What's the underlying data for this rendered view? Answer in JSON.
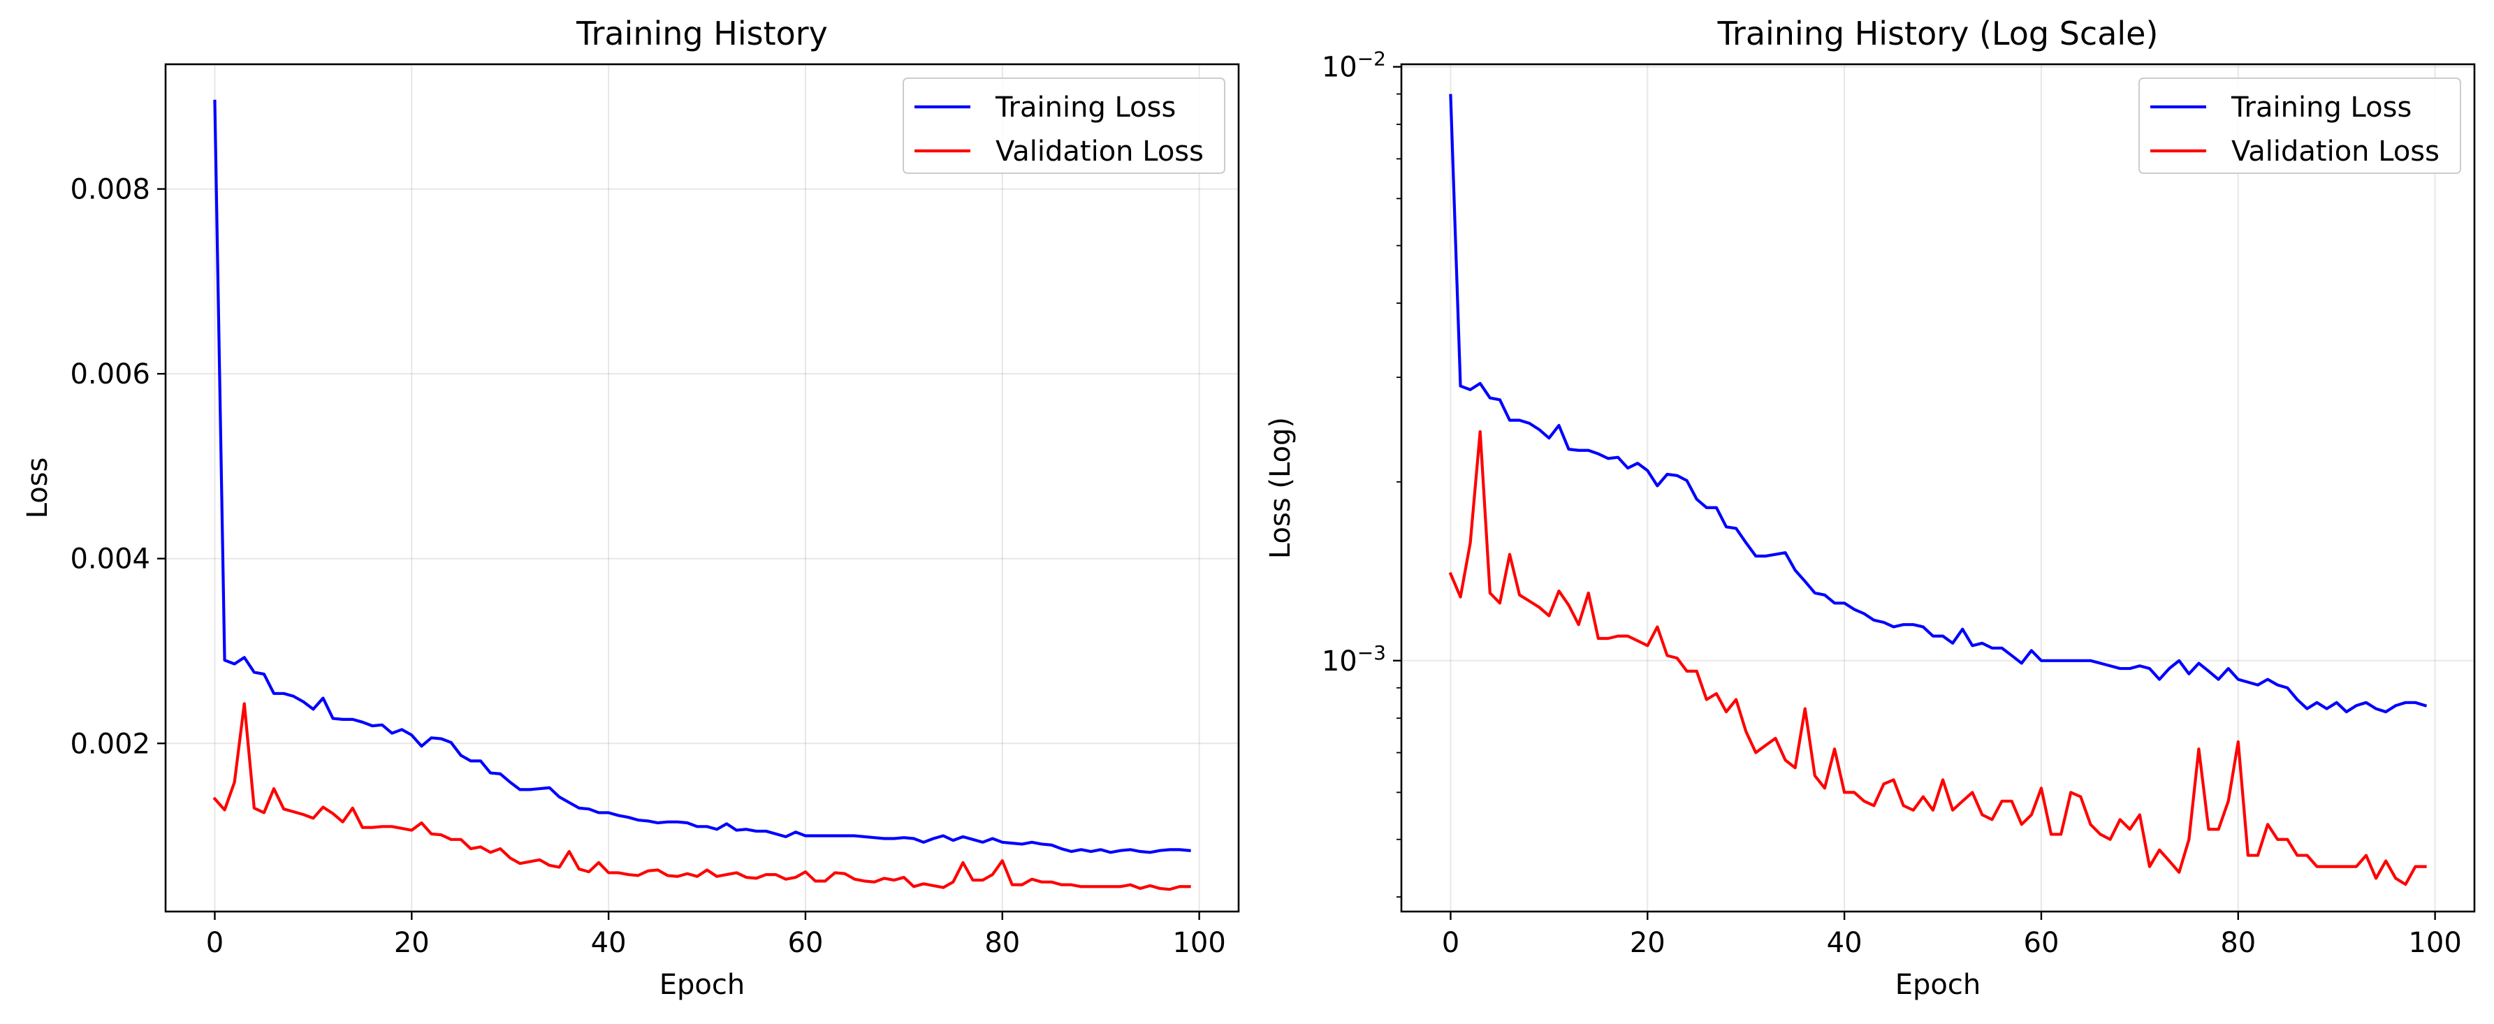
{
  "chart_data": [
    {
      "type": "line",
      "title": "Training History",
      "xlabel": "Epoch",
      "ylabel": "Loss",
      "yscale": "linear",
      "xlim": [
        -5,
        104
      ],
      "ylim": [
        0.00018,
        0.00935
      ],
      "xticks": [
        0,
        20,
        40,
        60,
        80,
        100
      ],
      "xtick_labels": [
        "0",
        "20",
        "40",
        "60",
        "80",
        "100"
      ],
      "yticks": [
        0.002,
        0.004,
        0.006,
        0.008
      ],
      "ytick_labels": [
        "0.002",
        "0.004",
        "0.006",
        "0.008"
      ],
      "grid": true,
      "legend": "top-right",
      "series": [
        {
          "name": "Training Loss",
          "color": "#0000ff",
          "x": [
            0,
            1,
            2,
            3,
            4,
            5,
            6,
            7,
            8,
            9,
            10,
            11,
            12,
            13,
            14,
            15,
            16,
            17,
            18,
            19,
            20,
            21,
            22,
            23,
            24,
            25,
            26,
            27,
            28,
            29,
            30,
            31,
            32,
            33,
            34,
            35,
            36,
            37,
            38,
            39,
            40,
            41,
            42,
            43,
            44,
            45,
            46,
            47,
            48,
            49,
            50,
            51,
            52,
            53,
            54,
            55,
            56,
            57,
            58,
            59,
            60,
            61,
            62,
            63,
            64,
            65,
            66,
            67,
            68,
            69,
            70,
            71,
            72,
            73,
            74,
            75,
            76,
            77,
            78,
            79,
            80,
            81,
            82,
            83,
            84,
            85,
            86,
            87,
            88,
            89,
            90,
            91,
            92,
            93,
            94,
            95,
            96,
            97,
            98,
            99
          ],
          "values": [
            0.00895,
            0.0029,
            0.00286,
            0.00293,
            0.00277,
            0.00275,
            0.00254,
            0.00254,
            0.00251,
            0.00245,
            0.00237,
            0.00249,
            0.00227,
            0.00226,
            0.00226,
            0.00223,
            0.00219,
            0.0022,
            0.00211,
            0.00215,
            0.00209,
            0.00197,
            0.00206,
            0.00205,
            0.00201,
            0.00187,
            0.00181,
            0.00181,
            0.00168,
            0.00167,
            0.00158,
            0.0015,
            0.0015,
            0.00151,
            0.00152,
            0.00142,
            0.00136,
            0.0013,
            0.00129,
            0.00125,
            0.00125,
            0.00122,
            0.0012,
            0.00117,
            0.00116,
            0.00114,
            0.00115,
            0.00115,
            0.00114,
            0.0011,
            0.0011,
            0.00107,
            0.00113,
            0.00106,
            0.00107,
            0.00105,
            0.00105,
            0.00102,
            0.00099,
            0.00104,
            0.001,
            0.001,
            0.001,
            0.001,
            0.001,
            0.001,
            0.00099,
            0.00098,
            0.00097,
            0.00097,
            0.00098,
            0.00097,
            0.00093,
            0.00097,
            0.001,
            0.00095,
            0.00099,
            0.00096,
            0.00093,
            0.00097,
            0.00093,
            0.00092,
            0.00091,
            0.00093,
            0.00091,
            0.0009,
            0.00086,
            0.00083,
            0.00085,
            0.00083,
            0.00085,
            0.00082,
            0.00084,
            0.00085,
            0.00083,
            0.00082,
            0.00084,
            0.00085,
            0.00085,
            0.00084
          ]
        },
        {
          "name": "Validation Loss",
          "color": "#ff0000",
          "x": [
            0,
            1,
            2,
            3,
            4,
            5,
            6,
            7,
            8,
            9,
            10,
            11,
            12,
            13,
            14,
            15,
            16,
            17,
            18,
            19,
            20,
            21,
            22,
            23,
            24,
            25,
            26,
            27,
            28,
            29,
            30,
            31,
            32,
            33,
            34,
            35,
            36,
            37,
            38,
            39,
            40,
            41,
            42,
            43,
            44,
            45,
            46,
            47,
            48,
            49,
            50,
            51,
            52,
            53,
            54,
            55,
            56,
            57,
            58,
            59,
            60,
            61,
            62,
            63,
            64,
            65,
            66,
            67,
            68,
            69,
            70,
            71,
            72,
            73,
            74,
            75,
            76,
            77,
            78,
            79,
            80,
            81,
            82,
            83,
            84,
            85,
            86,
            87,
            88,
            89,
            90,
            91,
            92,
            93,
            94,
            95,
            96,
            97,
            98,
            99
          ],
          "values": [
            0.0014,
            0.00128,
            0.00158,
            0.00243,
            0.0013,
            0.00125,
            0.00151,
            0.00129,
            0.00126,
            0.00123,
            0.00119,
            0.00131,
            0.00124,
            0.00115,
            0.0013,
            0.00109,
            0.00109,
            0.0011,
            0.0011,
            0.00108,
            0.00106,
            0.00114,
            0.00102,
            0.00101,
            0.00096,
            0.00096,
            0.00086,
            0.00088,
            0.00082,
            0.00086,
            0.00076,
            0.0007,
            0.00072,
            0.00074,
            0.00068,
            0.00066,
            0.00083,
            0.00064,
            0.00061,
            0.00071,
            0.0006,
            0.0006,
            0.00058,
            0.00057,
            0.00062,
            0.00063,
            0.00057,
            0.00056,
            0.00059,
            0.00056,
            0.00063,
            0.00056,
            0.00058,
            0.0006,
            0.00055,
            0.00054,
            0.00058,
            0.00058,
            0.00053,
            0.00055,
            0.00061,
            0.00051,
            0.00051,
            0.0006,
            0.00059,
            0.00053,
            0.00051,
            0.0005,
            0.00054,
            0.00052,
            0.00055,
            0.00045,
            0.00048,
            0.00046,
            0.00044,
            0.0005,
            0.00071,
            0.00052,
            0.00052,
            0.00058,
            0.00073,
            0.00047,
            0.00047,
            0.00053,
            0.0005,
            0.0005,
            0.00047,
            0.00047,
            0.00045,
            0.00045,
            0.00045,
            0.00045,
            0.00045,
            0.00047,
            0.00043,
            0.00046,
            0.00043,
            0.00042,
            0.00045,
            0.00045
          ]
        }
      ]
    },
    {
      "type": "line",
      "title": "Training History (Log Scale)",
      "xlabel": "Epoch",
      "ylabel": "Loss (Log)",
      "yscale": "log",
      "xlim": [
        -5,
        104
      ],
      "ylim": [
        0.000378,
        0.0101
      ],
      "xticks": [
        0,
        20,
        40,
        60,
        80,
        100
      ],
      "xtick_labels": [
        "0",
        "20",
        "40",
        "60",
        "80",
        "100"
      ],
      "yticks": [
        0.001,
        0.01
      ],
      "ytick_base": "10",
      "ytick_exponents": [
        "−3",
        "−2"
      ],
      "grid": true,
      "legend": "top-right",
      "series": [
        {
          "name": "Training Loss",
          "color": "#0000ff",
          "x": [
            0,
            1,
            2,
            3,
            4,
            5,
            6,
            7,
            8,
            9,
            10,
            11,
            12,
            13,
            14,
            15,
            16,
            17,
            18,
            19,
            20,
            21,
            22,
            23,
            24,
            25,
            26,
            27,
            28,
            29,
            30,
            31,
            32,
            33,
            34,
            35,
            36,
            37,
            38,
            39,
            40,
            41,
            42,
            43,
            44,
            45,
            46,
            47,
            48,
            49,
            50,
            51,
            52,
            53,
            54,
            55,
            56,
            57,
            58,
            59,
            60,
            61,
            62,
            63,
            64,
            65,
            66,
            67,
            68,
            69,
            70,
            71,
            72,
            73,
            74,
            75,
            76,
            77,
            78,
            79,
            80,
            81,
            82,
            83,
            84,
            85,
            86,
            87,
            88,
            89,
            90,
            91,
            92,
            93,
            94,
            95,
            96,
            97,
            98,
            99
          ],
          "values": [
            0.00895,
            0.0029,
            0.00286,
            0.00293,
            0.00277,
            0.00275,
            0.00254,
            0.00254,
            0.00251,
            0.00245,
            0.00237,
            0.00249,
            0.00227,
            0.00226,
            0.00226,
            0.00223,
            0.00219,
            0.0022,
            0.00211,
            0.00215,
            0.00209,
            0.00197,
            0.00206,
            0.00205,
            0.00201,
            0.00187,
            0.00181,
            0.00181,
            0.00168,
            0.00167,
            0.00158,
            0.0015,
            0.0015,
            0.00151,
            0.00152,
            0.00142,
            0.00136,
            0.0013,
            0.00129,
            0.00125,
            0.00125,
            0.00122,
            0.0012,
            0.00117,
            0.00116,
            0.00114,
            0.00115,
            0.00115,
            0.00114,
            0.0011,
            0.0011,
            0.00107,
            0.00113,
            0.00106,
            0.00107,
            0.00105,
            0.00105,
            0.00102,
            0.00099,
            0.00104,
            0.001,
            0.001,
            0.001,
            0.001,
            0.001,
            0.001,
            0.00099,
            0.00098,
            0.00097,
            0.00097,
            0.00098,
            0.00097,
            0.00093,
            0.00097,
            0.001,
            0.00095,
            0.00099,
            0.00096,
            0.00093,
            0.00097,
            0.00093,
            0.00092,
            0.00091,
            0.00093,
            0.00091,
            0.0009,
            0.00086,
            0.00083,
            0.00085,
            0.00083,
            0.00085,
            0.00082,
            0.00084,
            0.00085,
            0.00083,
            0.00082,
            0.00084,
            0.00085,
            0.00085,
            0.00084
          ]
        },
        {
          "name": "Validation Loss",
          "color": "#ff0000",
          "x": [
            0,
            1,
            2,
            3,
            4,
            5,
            6,
            7,
            8,
            9,
            10,
            11,
            12,
            13,
            14,
            15,
            16,
            17,
            18,
            19,
            20,
            21,
            22,
            23,
            24,
            25,
            26,
            27,
            28,
            29,
            30,
            31,
            32,
            33,
            34,
            35,
            36,
            37,
            38,
            39,
            40,
            41,
            42,
            43,
            44,
            45,
            46,
            47,
            48,
            49,
            50,
            51,
            52,
            53,
            54,
            55,
            56,
            57,
            58,
            59,
            60,
            61,
            62,
            63,
            64,
            65,
            66,
            67,
            68,
            69,
            70,
            71,
            72,
            73,
            74,
            75,
            76,
            77,
            78,
            79,
            80,
            81,
            82,
            83,
            84,
            85,
            86,
            87,
            88,
            89,
            90,
            91,
            92,
            93,
            94,
            95,
            96,
            97,
            98,
            99
          ],
          "values": [
            0.0014,
            0.00128,
            0.00158,
            0.00243,
            0.0013,
            0.00125,
            0.00151,
            0.00129,
            0.00126,
            0.00123,
            0.00119,
            0.00131,
            0.00124,
            0.00115,
            0.0013,
            0.00109,
            0.00109,
            0.0011,
            0.0011,
            0.00108,
            0.00106,
            0.00114,
            0.00102,
            0.00101,
            0.00096,
            0.00096,
            0.00086,
            0.00088,
            0.00082,
            0.00086,
            0.00076,
            0.0007,
            0.00072,
            0.00074,
            0.00068,
            0.00066,
            0.00083,
            0.00064,
            0.00061,
            0.00071,
            0.0006,
            0.0006,
            0.00058,
            0.00057,
            0.00062,
            0.00063,
            0.00057,
            0.00056,
            0.00059,
            0.00056,
            0.00063,
            0.00056,
            0.00058,
            0.0006,
            0.00055,
            0.00054,
            0.00058,
            0.00058,
            0.00053,
            0.00055,
            0.00061,
            0.00051,
            0.00051,
            0.0006,
            0.00059,
            0.00053,
            0.00051,
            0.0005,
            0.00054,
            0.00052,
            0.00055,
            0.00045,
            0.00048,
            0.00046,
            0.00044,
            0.0005,
            0.00071,
            0.00052,
            0.00052,
            0.00058,
            0.00073,
            0.00047,
            0.00047,
            0.00053,
            0.0005,
            0.0005,
            0.00047,
            0.00047,
            0.00045,
            0.00045,
            0.00045,
            0.00045,
            0.00045,
            0.00047,
            0.00043,
            0.00046,
            0.00043,
            0.00042,
            0.00045,
            0.00045
          ]
        }
      ]
    }
  ]
}
